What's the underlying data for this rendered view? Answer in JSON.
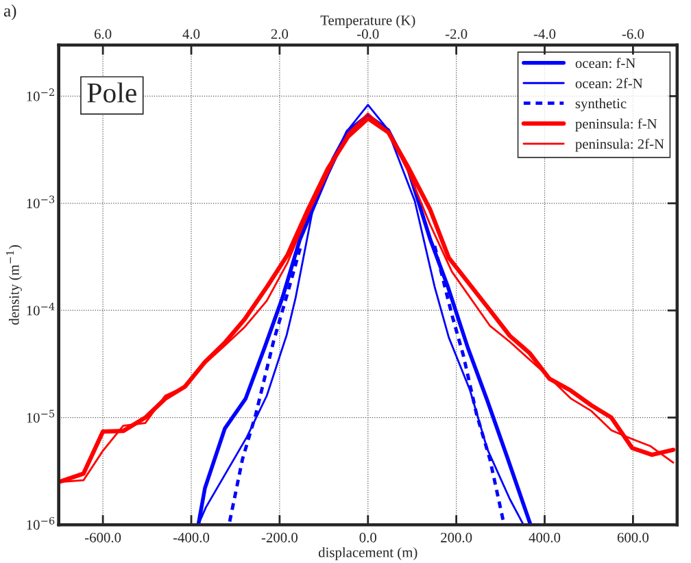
{
  "chart_data": {
    "type": "line",
    "xlabel": "displacement (m)",
    "ylabel": "density (m$^{−1}$)",
    "x2label": "Temperature (K)",
    "annotations": [
      "a)",
      "Pole"
    ],
    "log": "y",
    "grid": true,
    "legend": "top right",
    "xlim": [
      -700,
      700
    ],
    "xticks": [
      {
        "value": -600,
        "label": "-600.0"
      },
      {
        "value": -400,
        "label": "-400.0"
      },
      {
        "value": -200,
        "label": "-200.0"
      },
      {
        "value": 0,
        "label": "0.0"
      },
      {
        "value": 200,
        "label": "200.0"
      },
      {
        "value": 400,
        "label": "400.0"
      },
      {
        "value": 600,
        "label": "600.0"
      }
    ],
    "x2lim": [
      7.0,
      -7.0
    ],
    "x2ticks": [
      {
        "value": 6,
        "label": "6.0"
      },
      {
        "value": 4,
        "label": "4.0"
      },
      {
        "value": 2,
        "label": "2.0"
      },
      {
        "value": 0,
        "label": "-0.0"
      },
      {
        "value": -2,
        "label": "-2.0"
      },
      {
        "value": -4,
        "label": "-4.0"
      },
      {
        "value": -6,
        "label": "-6.0"
      }
    ],
    "ylim": [
      1e-06,
      0.03
    ],
    "yticks": [
      {
        "value": 1e-06,
        "label": "10$^{−6}$"
      },
      {
        "value": 1e-05,
        "label": "10$^{−5}$"
      },
      {
        "value": 0.0001,
        "label": "10$^{−4}$"
      },
      {
        "value": 0.001,
        "label": "10$^{−3}$"
      },
      {
        "value": 0.01,
        "label": "10$^{−2}$"
      }
    ],
    "series": [
      {
        "name": "ocean: f-N",
        "color": "#0000ff",
        "line_style": "solid",
        "x": [
          -384,
          -369,
          -324,
          -277,
          -234,
          -194,
          -154,
          -91,
          -46,
          0,
          46,
          91,
          141,
          181,
          226,
          270,
          315,
          368
        ],
        "values": [
          1e-06,
          2.2e-06,
          7.9e-06,
          1.5e-05,
          4.5e-05,
          0.00013,
          0.00046,
          0.0019,
          0.0047,
          0.0066,
          0.0048,
          0.0021,
          0.00046,
          0.000166,
          4.5e-05,
          1.45e-05,
          4.3e-06,
          1e-06
        ]
      },
      {
        "name": "ocean: 2f-N",
        "color": "#0000ff",
        "line_style": "solid",
        "x": [
          -384,
          -367,
          -274,
          -229,
          -184,
          -164,
          -125,
          -81,
          -46,
          0,
          43,
          106,
          151,
          183,
          231,
          270,
          321,
          352
        ],
        "values": [
          1e-06,
          1.45e-06,
          6.6e-06,
          1.6e-05,
          5.9e-05,
          0.00013,
          0.00087,
          0.0026,
          0.0048,
          0.0083,
          0.005,
          0.00105,
          0.000166,
          5.6e-05,
          1.8e-05,
          5.1e-06,
          1.74e-06,
          1e-06
        ]
      },
      {
        "name": "synthetic",
        "color": "#0000ff",
        "line_style": "dashed",
        "x": [
          -313,
          -284,
          -254,
          -214,
          -181,
          -152,
          0,
          151,
          190,
          216,
          246,
          276,
          306
        ],
        "values": [
          1.07e-06,
          4.1e-06,
          1.07e-05,
          5.1e-05,
          0.00015,
          0.0004,
          null,
          0.0004,
          9.1e-05,
          3.8e-05,
          1.07e-05,
          4.1e-06,
          1.1e-06
        ]
      },
      {
        "name": "peninsula: f-N",
        "color": "#ff0000",
        "line_style": "solid",
        "x": [
          -700,
          -644,
          -600,
          -554,
          -504,
          -459,
          -414,
          -369,
          -324,
          -279,
          -227,
          -182,
          -136,
          -91,
          -45,
          0,
          46,
          93,
          141,
          183,
          271,
          321,
          366,
          411,
          458,
          506,
          551,
          598,
          643,
          691
        ],
        "values": [
          2.5e-06,
          3e-06,
          7.4e-06,
          7.5e-06,
          1e-05,
          1.5e-05,
          1.95e-05,
          3.3e-05,
          5e-05,
          8.3e-05,
          0.00017,
          0.00033,
          0.00087,
          0.0021,
          0.0042,
          0.0062,
          0.0046,
          0.0021,
          0.00087,
          0.00031,
          0.000107,
          5.8e-05,
          4e-05,
          2.3e-05,
          1.8e-05,
          1.3e-05,
          1e-05,
          5.2e-06,
          4.5e-06,
          5e-06
        ]
      },
      {
        "name": "peninsula: 2f-N",
        "color": "#ff0000",
        "line_style": "solid",
        "x": [
          -700,
          -644,
          -600,
          -554,
          -504,
          -459,
          -414,
          -369,
          -324,
          -279,
          -229,
          -182,
          -136,
          -91,
          -45,
          0,
          46,
          93,
          141,
          190,
          276,
          321,
          400,
          460,
          506,
          551,
          598,
          640,
          691
        ],
        "values": [
          2.5e-06,
          2.6e-06,
          4.9e-06,
          8.4e-06,
          8.9e-06,
          1.6e-05,
          1.95e-05,
          3.2e-05,
          4.7e-05,
          7e-05,
          0.000123,
          0.00028,
          0.00079,
          0.0019,
          0.0045,
          0.0069,
          0.0046,
          0.0019,
          0.00063,
          0.00023,
          7.2e-05,
          5.1e-05,
          2.6e-05,
          1.5e-05,
          1.15e-05,
          7.6e-06,
          6.3e-06,
          5.4e-06,
          3.8e-06
        ]
      }
    ]
  }
}
